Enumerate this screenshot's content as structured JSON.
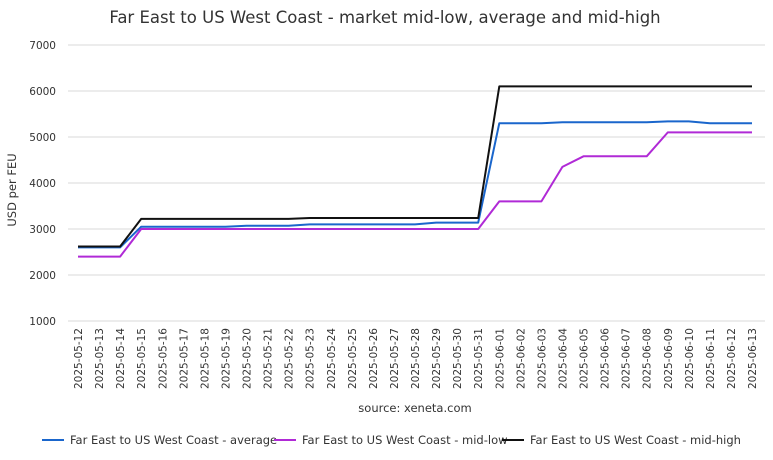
{
  "chart_data": {
    "type": "line",
    "title": "Far East to US West Coast - market mid-low, average and mid-high",
    "xlabel": "source: xeneta.com",
    "ylabel": "USD per FEU",
    "ylim": [
      1000,
      7000
    ],
    "yticks": [
      "1000",
      "2000",
      "3000",
      "4000",
      "5000",
      "6000",
      "7000"
    ],
    "grid": true,
    "legend_position": "bottom",
    "categories": [
      "2025-05-12",
      "2025-05-13",
      "2025-05-14",
      "2025-05-15",
      "2025-05-16",
      "2025-05-17",
      "2025-05-18",
      "2025-05-19",
      "2025-05-20",
      "2025-05-21",
      "2025-05-22",
      "2025-05-23",
      "2025-05-24",
      "2025-05-25",
      "2025-05-26",
      "2025-05-27",
      "2025-05-28",
      "2025-05-29",
      "2025-05-30",
      "2025-05-31",
      "2025-06-01",
      "2025-06-02",
      "2025-06-03",
      "2025-06-04",
      "2025-06-05",
      "2025-06-06",
      "2025-06-07",
      "2025-06-08",
      "2025-06-09",
      "2025-06-10",
      "2025-06-11",
      "2025-06-12",
      "2025-06-13"
    ],
    "series": [
      {
        "name": "Far East to US West Coast - average",
        "color": "#1a66cc",
        "values": [
          2600,
          2600,
          2600,
          3050,
          3050,
          3050,
          3050,
          3050,
          3070,
          3070,
          3070,
          3100,
          3100,
          3100,
          3100,
          3100,
          3100,
          3140,
          3140,
          3140,
          5300,
          5300,
          5300,
          5320,
          5320,
          5320,
          5320,
          5320,
          5340,
          5340,
          5300,
          5300,
          5300
        ]
      },
      {
        "name": "Far East to US West Coast - mid-low",
        "color": "#b02ad6",
        "values": [
          2400,
          2400,
          2400,
          3000,
          3000,
          3000,
          3000,
          3000,
          3000,
          3000,
          3000,
          3000,
          3000,
          3000,
          3000,
          3000,
          3000,
          3000,
          3000,
          3000,
          3600,
          3600,
          3600,
          4350,
          4580,
          4580,
          4580,
          4580,
          5100,
          5100,
          5100,
          5100,
          5100
        ]
      },
      {
        "name": "Far East to US West Coast - mid-high",
        "color": "#111111",
        "values": [
          2620,
          2620,
          2620,
          3220,
          3220,
          3220,
          3220,
          3220,
          3220,
          3220,
          3220,
          3240,
          3240,
          3240,
          3240,
          3240,
          3240,
          3240,
          3240,
          3240,
          6100,
          6100,
          6100,
          6100,
          6100,
          6100,
          6100,
          6100,
          6100,
          6100,
          6100,
          6100,
          6100
        ]
      }
    ]
  }
}
